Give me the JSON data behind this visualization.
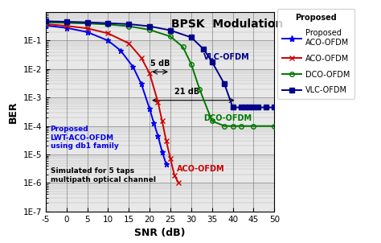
{
  "title": "BPSK  Modulation",
  "xlabel": "SNR (dB)",
  "ylabel": "BER",
  "xlim": [
    -5,
    50
  ],
  "annotation1": "5 dB",
  "annotation2": "21 dB",
  "label_proposed": "Proposed\nLWT-ACO-OFDM\nusing db1 family",
  "label_sim": "Simulated for 5 taps\nmultipath optical channel",
  "proposed_aco_snr": [
    -5,
    0,
    5,
    10,
    13,
    16,
    18,
    20,
    21,
    22,
    23,
    24
  ],
  "proposed_aco_ber": [
    0.34,
    0.28,
    0.2,
    0.1,
    0.045,
    0.012,
    0.003,
    0.0004,
    0.00013,
    4.5e-05,
    1.25e-05,
    4.5e-06
  ],
  "aco_snr": [
    -5,
    0,
    5,
    10,
    15,
    18,
    20,
    22,
    23,
    24,
    25,
    26,
    27
  ],
  "aco_ber": [
    0.38,
    0.33,
    0.27,
    0.18,
    0.08,
    0.025,
    0.007,
    0.0007,
    0.00015,
    3e-05,
    7e-06,
    1.8e-06,
    1e-06
  ],
  "dco_snr": [
    -5,
    0,
    5,
    10,
    15,
    20,
    25,
    28,
    30,
    32,
    35,
    38,
    40,
    42,
    45,
    50
  ],
  "dco_ber": [
    0.44,
    0.42,
    0.4,
    0.37,
    0.32,
    0.24,
    0.14,
    0.06,
    0.015,
    0.002,
    0.00015,
    0.0001,
    0.0001,
    0.0001,
    0.0001,
    0.0001
  ],
  "vlc_snr": [
    -5,
    0,
    5,
    10,
    15,
    20,
    25,
    30,
    33,
    35,
    38,
    40,
    42,
    43,
    44,
    45,
    46,
    48,
    50
  ],
  "vlc_ber": [
    0.48,
    0.46,
    0.44,
    0.41,
    0.38,
    0.32,
    0.23,
    0.13,
    0.05,
    0.018,
    0.003,
    0.00045,
    0.00045,
    0.00045,
    0.00045,
    0.00045,
    0.00045,
    0.00045,
    0.00045
  ],
  "proposed_color": "#0000ee",
  "aco_color": "#cc0000",
  "dco_color": "#007700",
  "vlc_color": "#00008b",
  "bg_color": "#e8e8e8"
}
